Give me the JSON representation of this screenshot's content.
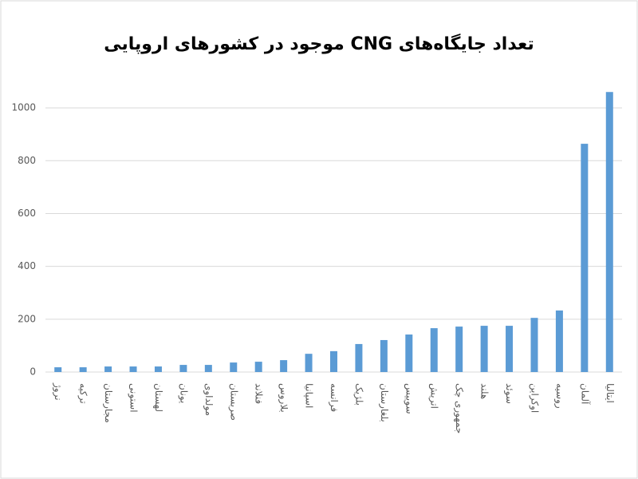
{
  "chart_data": {
    "type": "bar",
    "title": "تعداد جایگاه‌های CNG موجود در کشورهای اروپایی",
    "categories": [
      "نروژ",
      "ترکیه",
      "مجارستان",
      "استونی",
      "لهستان",
      "یونان",
      "مولداوی",
      "صربستان",
      "فنلاند",
      "بلاروس",
      "اسپانیا",
      "فرانسه",
      "بلژیک",
      "بلغارستان",
      "سوییس",
      "اتریش",
      "جمهوری چک",
      "هلند",
      "سوئد",
      "اوکراین",
      "روسیه",
      "آلمان",
      "ایتالیا"
    ],
    "values": [
      18,
      18,
      21,
      21,
      21,
      27,
      27,
      36,
      39,
      45,
      69,
      79,
      106,
      121,
      142,
      166,
      172,
      175,
      175,
      205,
      233,
      864,
      1060
    ],
    "color": "#5b9bd5",
    "ylim": [
      0,
      1100
    ],
    "yticks": [
      0,
      200,
      400,
      600,
      800,
      1000
    ],
    "grid": true
  }
}
